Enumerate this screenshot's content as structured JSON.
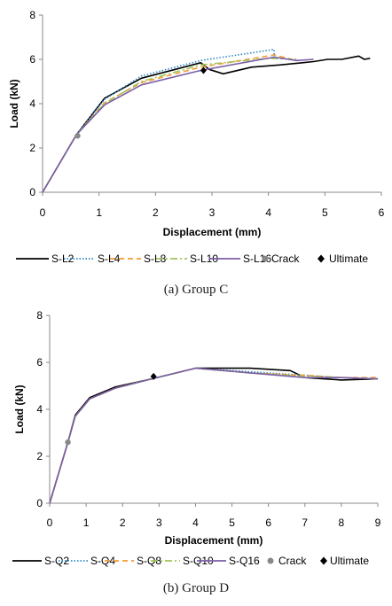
{
  "chart_data": [
    {
      "type": "line",
      "caption": "(a) Group C",
      "xlabel": "Displacement (mm)",
      "ylabel": "Load (kN)",
      "xlim": [
        0,
        6
      ],
      "ylim": [
        0,
        8
      ],
      "xticks": [
        "0",
        "1",
        "2",
        "3",
        "4",
        "5",
        "6"
      ],
      "yticks": [
        "0",
        "2",
        "4",
        "6",
        "8"
      ],
      "grid": false,
      "legend_position": "bottom",
      "series": [
        {
          "name": "S-L2",
          "color": "#000000",
          "dash": "none",
          "x": [
            0,
            0.6,
            1.1,
            1.75,
            2.8,
            2.95,
            3.2,
            3.7,
            4.2,
            4.6,
            4.8,
            5.05,
            5.3,
            5.6,
            5.7,
            5.8
          ],
          "y": [
            0,
            2.6,
            4.25,
            5.15,
            5.85,
            5.55,
            5.35,
            5.65,
            5.75,
            5.85,
            5.9,
            6.0,
            6.0,
            6.15,
            6.0,
            6.05
          ]
        },
        {
          "name": "S-L4",
          "color": "#2c86c7",
          "dash": "1.5 2",
          "x": [
            0,
            0.6,
            1.1,
            1.75,
            2.8,
            4.1,
            4.1
          ],
          "y": [
            0,
            2.6,
            4.2,
            5.25,
            5.95,
            6.45,
            6.0
          ]
        },
        {
          "name": "S-L8",
          "color": "#f39c34",
          "dash": "6 4",
          "x": [
            0,
            0.6,
            1.1,
            1.75,
            2.8,
            4.1,
            4.5
          ],
          "y": [
            0,
            2.6,
            4.05,
            4.95,
            5.65,
            6.2,
            5.95
          ]
        },
        {
          "name": "S-L10",
          "color": "#9fc55a",
          "dash": "8 3 2 3",
          "x": [
            0,
            0.6,
            1.1,
            1.75,
            2.8,
            4.0,
            4.5
          ],
          "y": [
            0,
            2.6,
            4.0,
            5.0,
            5.75,
            6.05,
            6.0
          ]
        },
        {
          "name": "S-L16",
          "color": "#7b5ea7",
          "dash": "none",
          "x": [
            0,
            0.6,
            1.1,
            1.75,
            2.8,
            4.1,
            4.5,
            4.8
          ],
          "y": [
            0,
            2.6,
            3.95,
            4.85,
            5.5,
            6.1,
            5.95,
            6.0
          ]
        }
      ],
      "markers": [
        {
          "name": "Crack",
          "shape": "circle",
          "color": "#888888",
          "points": [
            [
              0.62,
              2.55
            ]
          ]
        },
        {
          "name": "Ultimate",
          "shape": "diamond",
          "color": "#000000",
          "points": [
            [
              2.85,
              5.5
            ]
          ]
        }
      ]
    },
    {
      "type": "line",
      "caption": "(b) Group D",
      "xlabel": "Displacement (mm)",
      "ylabel": "Load (kN)",
      "xlim": [
        0,
        9
      ],
      "ylim": [
        0,
        8
      ],
      "xticks": [
        "0",
        "1",
        "2",
        "3",
        "4",
        "5",
        "6",
        "7",
        "8",
        "9"
      ],
      "yticks": [
        "0",
        "2",
        "4",
        "6",
        "8"
      ],
      "grid": false,
      "legend_position": "bottom",
      "series": [
        {
          "name": "S-Q2",
          "color": "#000000",
          "dash": "none",
          "x": [
            0,
            0.5,
            0.7,
            1.1,
            1.8,
            2.8,
            4.0,
            5.5,
            6.6,
            7.0,
            8.0,
            9.0
          ],
          "y": [
            0,
            2.6,
            3.75,
            4.5,
            4.95,
            5.3,
            5.75,
            5.75,
            5.65,
            5.35,
            5.25,
            5.3
          ]
        },
        {
          "name": "S-Q4",
          "color": "#2c86c7",
          "dash": "1.5 2",
          "x": [
            0,
            0.5,
            0.7,
            1.1,
            1.8,
            2.8,
            4.0,
            5.5,
            7.0,
            8.0,
            9.0
          ],
          "y": [
            0,
            2.6,
            3.7,
            4.45,
            4.9,
            5.3,
            5.75,
            5.6,
            5.45,
            5.35,
            5.3
          ]
        },
        {
          "name": "S-Q8",
          "color": "#f39c34",
          "dash": "6 4",
          "x": [
            0,
            0.5,
            0.7,
            1.1,
            1.8,
            2.8,
            4.0,
            5.5,
            7.0,
            8.0,
            9.0
          ],
          "y": [
            0,
            2.6,
            3.7,
            4.45,
            4.9,
            5.3,
            5.75,
            5.55,
            5.45,
            5.35,
            5.35
          ]
        },
        {
          "name": "S-Q10",
          "color": "#9fc55a",
          "dash": "8 3 2 3",
          "x": [
            0,
            0.5,
            0.7,
            1.1,
            1.8,
            2.8,
            4.0,
            5.5,
            7.0,
            8.0,
            9.0
          ],
          "y": [
            0,
            2.6,
            3.7,
            4.45,
            4.9,
            5.3,
            5.75,
            5.55,
            5.4,
            5.35,
            5.3
          ]
        },
        {
          "name": "S-Q16",
          "color": "#7b5ea7",
          "dash": "none",
          "x": [
            0,
            0.5,
            0.7,
            1.1,
            1.8,
            2.8,
            4.0,
            5.5,
            7.0,
            8.0,
            9.0
          ],
          "y": [
            0,
            2.6,
            3.7,
            4.45,
            4.9,
            5.3,
            5.75,
            5.55,
            5.35,
            5.35,
            5.3
          ]
        }
      ],
      "markers": [
        {
          "name": "Crack",
          "shape": "circle",
          "color": "#888888",
          "points": [
            [
              0.5,
              2.6
            ]
          ]
        },
        {
          "name": "Ultimate",
          "shape": "diamond",
          "color": "#000000",
          "points": [
            [
              2.85,
              5.4
            ]
          ]
        }
      ]
    }
  ]
}
